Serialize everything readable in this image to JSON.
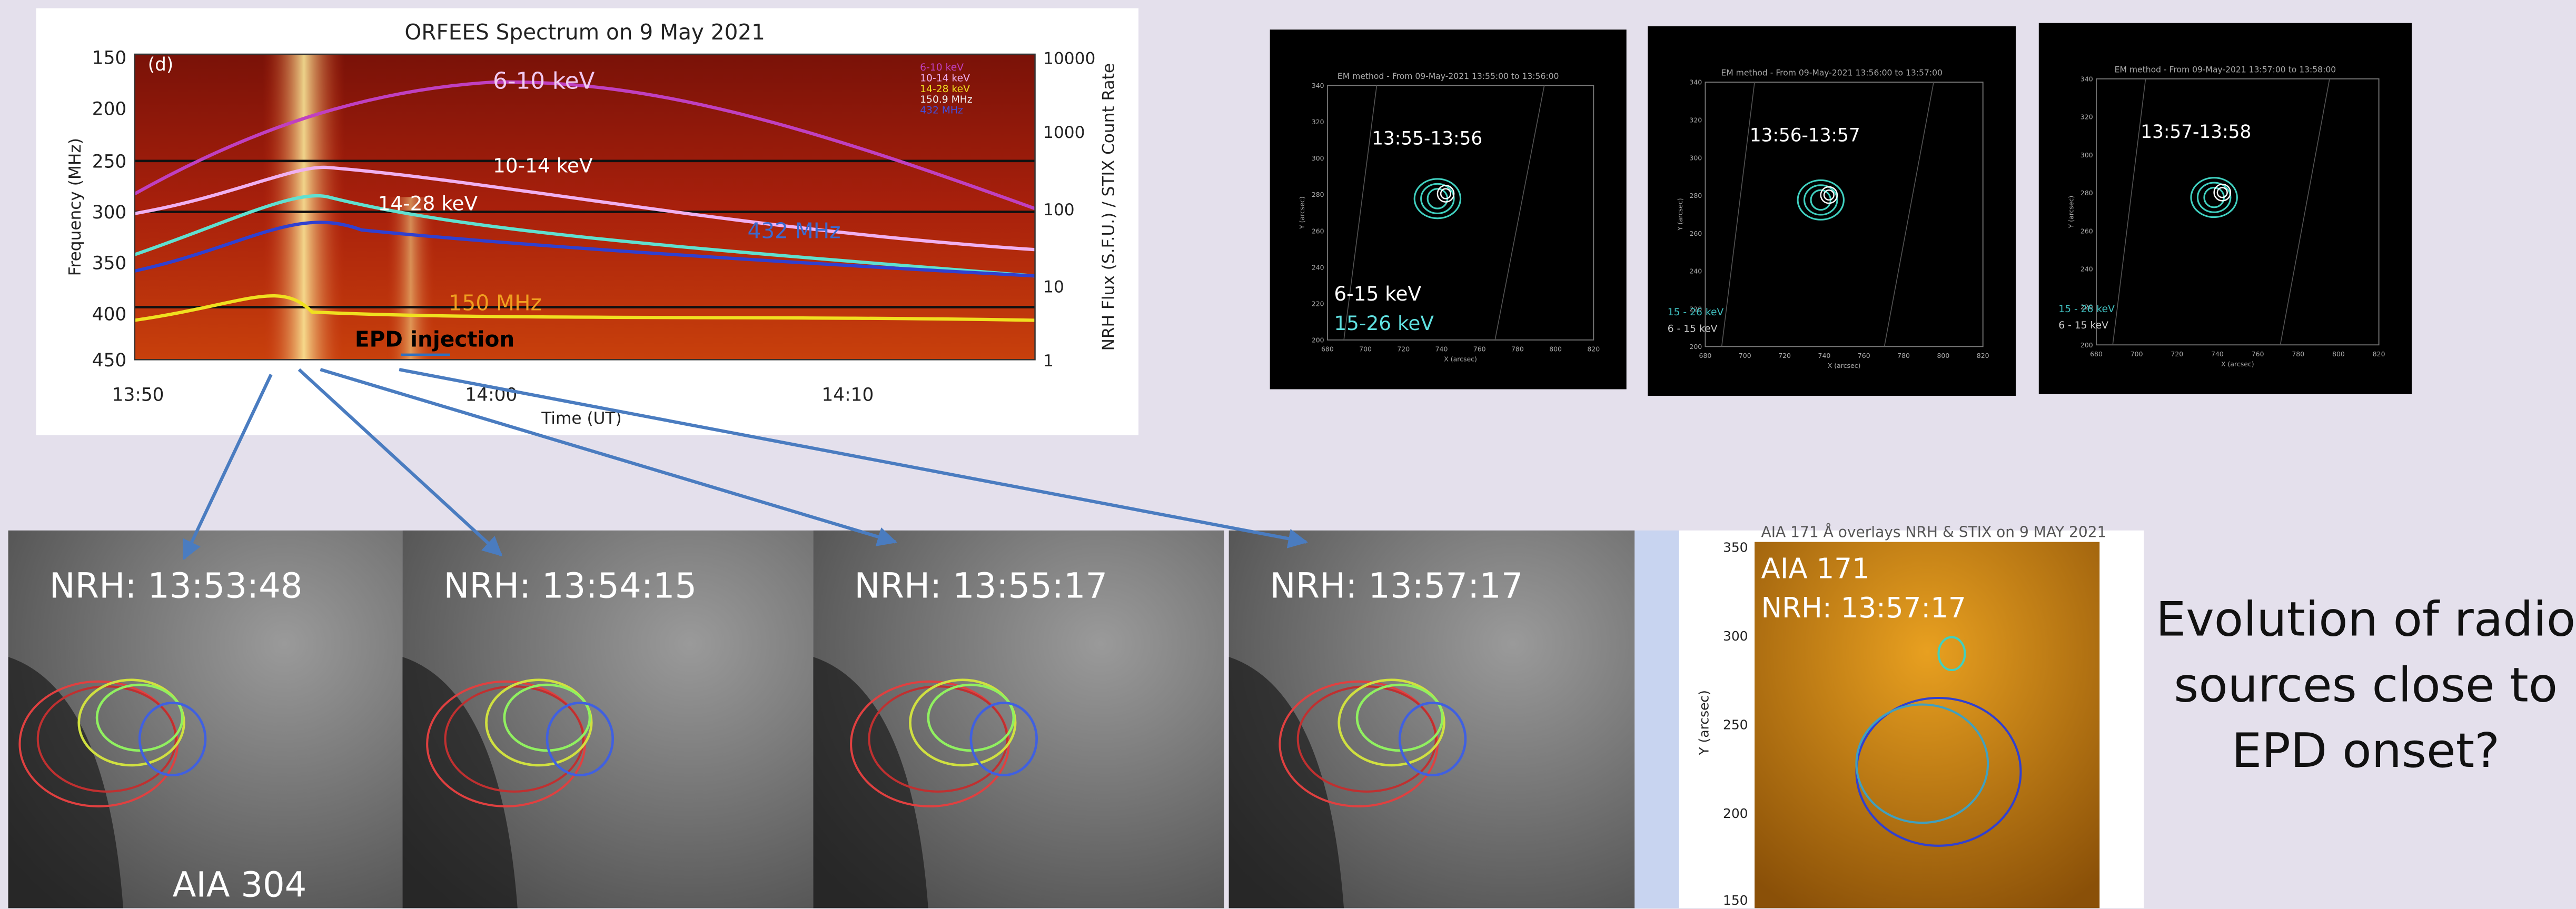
{
  "spectrum": {
    "title": "ORFEES Spectrum on 9 May 2021",
    "panel_label": "(d)",
    "y_label": "Frequency (MHz)",
    "y2_label": "NRH Flux (S.F.U.) / STIX Count Rate",
    "x_label": "Time (UT)",
    "yticks": [
      "150",
      "200",
      "250",
      "300",
      "350",
      "400",
      "450"
    ],
    "y2ticks": [
      "10000",
      "1000",
      "100",
      "10",
      "1"
    ],
    "xticks": [
      "13:50",
      "14:00",
      "14:10"
    ],
    "annotations": [
      "6-10 keV",
      "10-14 keV",
      "14-28 keV",
      "432 MHz",
      "150 MHz"
    ],
    "event_label": "EPD injection",
    "legend": [
      "6-10 keV",
      "10-14 keV",
      "14-28 keV",
      "150.9 MHz",
      "432 MHz"
    ]
  },
  "stix_panels": [
    {
      "header": "EM method - From 09-May-2021 13:55:00 to 13:56:00",
      "time": "13:55-13:56",
      "legend": [
        "6-15 keV",
        "15-26 keV"
      ]
    },
    {
      "header": "EM method - From 09-May-2021 13:56:00 to 13:57:00",
      "time": "13:56-13:57",
      "legend": [
        "15 - 26 keV",
        "6 - 15 keV"
      ]
    },
    {
      "header": "EM method - From 09-May-2021 13:57:00 to 13:58:00",
      "time": "13:57-13:58",
      "legend": [
        "15 - 26 keV",
        "6 - 15 keV"
      ]
    }
  ],
  "stix_axes": {
    "x_label": "X (arcsec)",
    "y_label": "Y (arcsec)",
    "xticks": [
      "680",
      "700",
      "720",
      "740",
      "760",
      "780",
      "800",
      "820"
    ],
    "yticks": [
      "200",
      "220",
      "240",
      "260",
      "280",
      "300",
      "320",
      "340"
    ]
  },
  "nrh_panels": [
    "NRH: 13:53:48",
    "NRH: 13:54:15",
    "NRH: 13:55:17",
    "NRH: 13:57:17"
  ],
  "aia304_label": "AIA 304",
  "aia171": {
    "header": "AIA 171 Å overlays NRH & STIX on 9 MAY 2021",
    "label": "AIA 171",
    "time": "NRH: 13:57:17",
    "y_label": "Y (arcsec)",
    "yticks": [
      "350",
      "300",
      "250",
      "200",
      "150"
    ]
  },
  "question": [
    "Evolution of radio",
    "sources close to",
    "EPD onset?"
  ]
}
